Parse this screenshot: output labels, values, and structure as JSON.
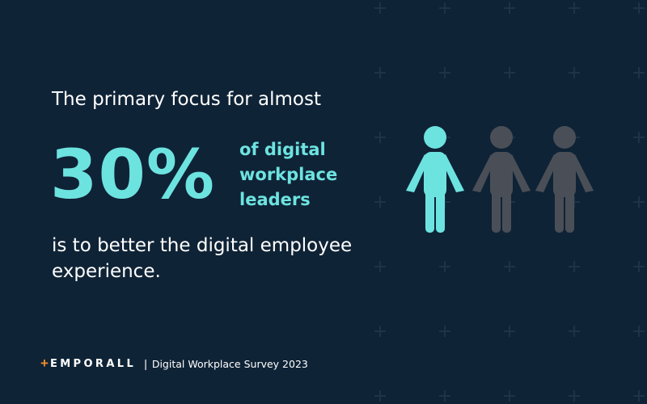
{
  "colors": {
    "background": "#0f2336",
    "accent": "#6de3e0",
    "muted_figure": "#4a4f57",
    "grid_plus": "#1d3347",
    "logo_accent": "#f08c2a",
    "text": "#ffffff"
  },
  "headline": {
    "intro": "The primary focus for almost",
    "percent": "30%",
    "descriptor_lines": [
      "of digital",
      "workplace",
      "leaders"
    ],
    "outro": "is to better the digital employee experience."
  },
  "figures": {
    "total": 3,
    "highlighted": 1,
    "icon": "person-icon"
  },
  "footer": {
    "logo_symbol": "+",
    "logo_text": "EMPORALL",
    "separator": "|",
    "source": "Digital Workplace Survey 2023"
  }
}
